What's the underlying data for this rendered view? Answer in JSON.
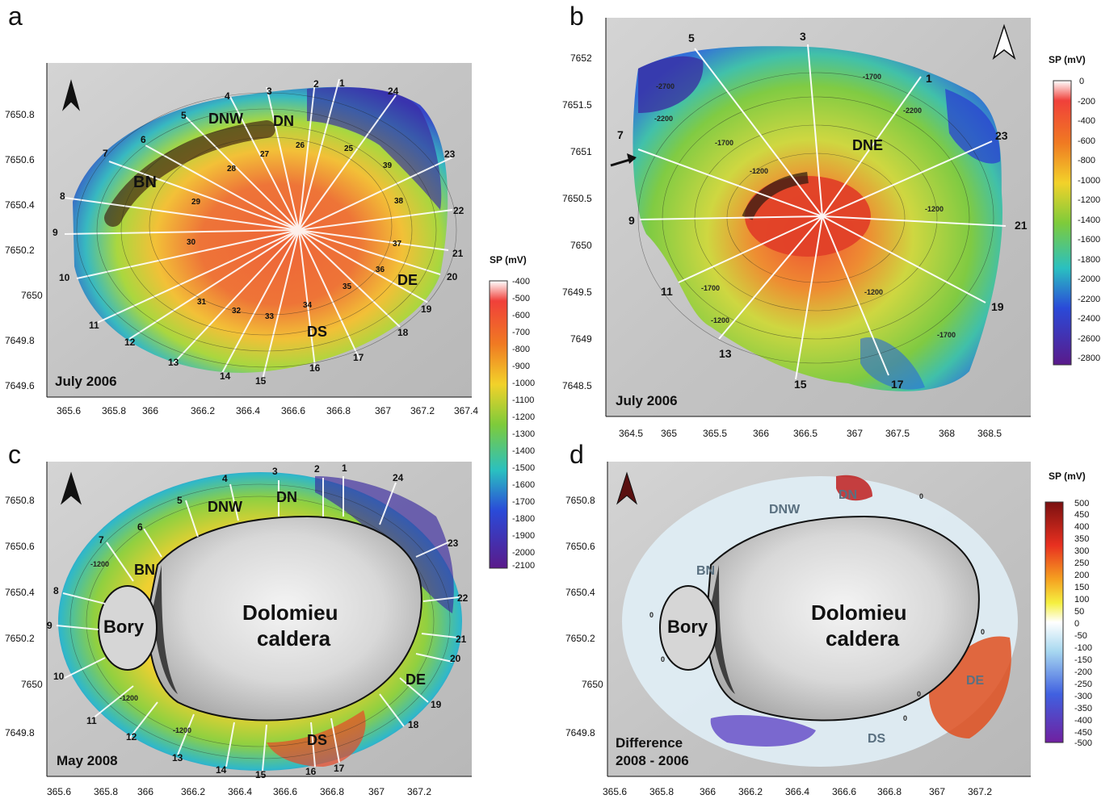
{
  "panels": {
    "a": {
      "label": "a",
      "date": "July 2006",
      "sites": [
        "BN",
        "DNW",
        "DN",
        "DE",
        "DS"
      ],
      "x_ticks": [
        "365.6",
        "365.8",
        "366",
        "366.2",
        "366.4",
        "366.6",
        "366.8",
        "367",
        "367.2",
        "367.4"
      ],
      "y_ticks": [
        "7650.8",
        "7650.6",
        "7650.4",
        "7650.2",
        "7650",
        "7649.8",
        "7649.6"
      ],
      "profiles": [
        "1",
        "2",
        "3",
        "4",
        "5",
        "6",
        "7",
        "8",
        "9",
        "10",
        "11",
        "12",
        "13",
        "14",
        "15",
        "16",
        "17",
        "18",
        "19",
        "20",
        "21",
        "22",
        "23",
        "24"
      ],
      "inner_points": [
        "25",
        "26",
        "27",
        "28",
        "29",
        "30",
        "31",
        "32",
        "33",
        "34",
        "35",
        "36",
        "37",
        "38",
        "39"
      ],
      "colorbar": {
        "title": "SP (mV)",
        "ticks": [
          "-400",
          "-500",
          "-600",
          "-700",
          "-800",
          "-900",
          "-1000",
          "-1100",
          "-1200",
          "-1300",
          "-1400",
          "-1500",
          "-1600",
          "-1700",
          "-1800",
          "-1900",
          "-2000",
          "-2100"
        ]
      }
    },
    "b": {
      "label": "b",
      "date": "July 2006",
      "sites": [
        "DNE"
      ],
      "x_ticks": [
        "364.5",
        "365",
        "365.5",
        "366",
        "366.5",
        "367",
        "367.5",
        "368",
        "368.5"
      ],
      "y_ticks": [
        "7652",
        "7651.5",
        "7651",
        "7650.5",
        "7650",
        "7649.5",
        "7649",
        "7648.5"
      ],
      "profiles": [
        "5",
        "3",
        "1",
        "7",
        "23",
        "9",
        "21",
        "11",
        "19",
        "13",
        "15",
        "17"
      ],
      "contour_labels": [
        "-2700",
        "-2200",
        "-1700",
        "-1200",
        "-1700",
        "-2200",
        "-1200",
        "-1700",
        "-1200",
        "-1200",
        "-1700"
      ],
      "colorbar": {
        "title": "SP (mV)",
        "ticks": [
          "0",
          "-200",
          "-400",
          "-600",
          "-800",
          "-1000",
          "-1200",
          "-1400",
          "-1600",
          "-1800",
          "-2000",
          "-2200",
          "-2400",
          "-2600",
          "-2800"
        ]
      }
    },
    "c": {
      "label": "c",
      "date": "May 2008",
      "sites": [
        "DNW",
        "DN",
        "BN",
        "DE",
        "DS"
      ],
      "crater_labels": {
        "bory": "Bory",
        "dolomieu_1": "Dolomieu",
        "dolomieu_2": "caldera"
      },
      "contour_labels": [
        "-1200",
        "-1200",
        "-1200"
      ],
      "x_ticks": [
        "365.6",
        "365.8",
        "366",
        "366.2",
        "366.4",
        "366.6",
        "366.8",
        "367",
        "367.2"
      ],
      "y_ticks": [
        "7650.8",
        "7650.6",
        "7650.4",
        "7650.2",
        "7650",
        "7649.8"
      ],
      "profiles": [
        "1",
        "2",
        "3",
        "4",
        "5",
        "6",
        "7",
        "8",
        "9",
        "10",
        "11",
        "12",
        "13",
        "14",
        "15",
        "16",
        "17",
        "18",
        "19",
        "20",
        "21",
        "22",
        "23",
        "24"
      ]
    },
    "d": {
      "label": "d",
      "date_line1": "Difference",
      "date_line2": "2008 - 2006",
      "sites": [
        "DNW",
        "DN",
        "BN",
        "DE",
        "DS"
      ],
      "crater_labels": {
        "bory": "Bory",
        "dolomieu_1": "Dolomieu",
        "dolomieu_2": "caldera"
      },
      "contour_labels": [
        "0",
        "0",
        "0",
        "0",
        "0",
        "0"
      ],
      "x_ticks": [
        "365.6",
        "365.8",
        "366",
        "366.2",
        "366.4",
        "366.6",
        "366.8",
        "367",
        "367.2"
      ],
      "y_ticks": [
        "7650.8",
        "7650.6",
        "7650.4",
        "7650.2",
        "7650",
        "7649.8"
      ],
      "colorbar": {
        "title": "SP (mV)",
        "ticks": [
          "500",
          "450",
          "400",
          "350",
          "300",
          "250",
          "200",
          "150",
          "100",
          "50",
          "0",
          "-50",
          "-100",
          "-150",
          "-200",
          "-250",
          "-300",
          "-350",
          "-400",
          "-450",
          "-500"
        ]
      }
    }
  },
  "colors": {
    "rainbow": [
      "#ffffff",
      "#e8302a",
      "#f5a21c",
      "#f2e62a",
      "#8fd13a",
      "#2ab5c8",
      "#2a40d8",
      "#5a1a8a"
    ],
    "diverging": [
      "#8a1a1a",
      "#e83020",
      "#f5a020",
      "#f5f040",
      "#ffffff",
      "#a8d8f0",
      "#4060e0",
      "#7020a0"
    ]
  }
}
